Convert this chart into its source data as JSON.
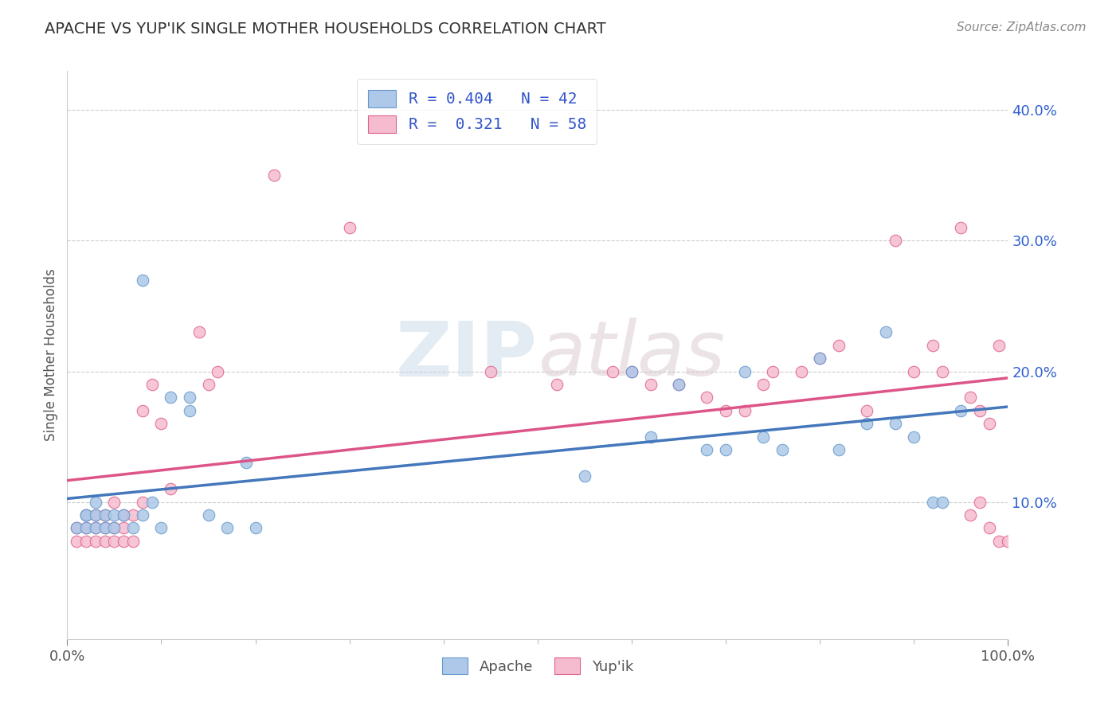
{
  "title": "APACHE VS YUP'IK SINGLE MOTHER HOUSEHOLDS CORRELATION CHART",
  "source": "Source: ZipAtlas.com",
  "ylabel": "Single Mother Households",
  "xlim": [
    0.0,
    1.0
  ],
  "ylim": [
    -0.005,
    0.43
  ],
  "yticks": [
    0.1,
    0.2,
    0.3,
    0.4
  ],
  "ytick_labels": [
    "10.0%",
    "20.0%",
    "30.0%",
    "40.0%"
  ],
  "xticks": [
    0.0,
    1.0
  ],
  "xtick_labels": [
    "0.0%",
    "100.0%"
  ],
  "R_apache": 0.404,
  "N_apache": 42,
  "R_yupik": 0.321,
  "N_yupik": 58,
  "apache_color": "#adc8e8",
  "yupik_color": "#f5bcd0",
  "apache_edge_color": "#6699cc",
  "yupik_edge_color": "#e0608a",
  "apache_line_color": "#4477bb",
  "yupik_line_color": "#dd5588",
  "legend_r_color": "#3355cc",
  "background_color": "#ffffff",
  "watermark_top": "ZIP",
  "watermark_bottom": "atlas",
  "apache_x": [
    0.01,
    0.02,
    0.02,
    0.02,
    0.03,
    0.03,
    0.03,
    0.04,
    0.04,
    0.05,
    0.05,
    0.06,
    0.07,
    0.08,
    0.08,
    0.09,
    0.1,
    0.11,
    0.13,
    0.13,
    0.15,
    0.17,
    0.19,
    0.2,
    0.55,
    0.6,
    0.62,
    0.65,
    0.68,
    0.7,
    0.72,
    0.74,
    0.76,
    0.8,
    0.82,
    0.85,
    0.87,
    0.88,
    0.9,
    0.92,
    0.93,
    0.95
  ],
  "apache_y": [
    0.08,
    0.09,
    0.08,
    0.09,
    0.08,
    0.09,
    0.1,
    0.08,
    0.09,
    0.08,
    0.09,
    0.09,
    0.08,
    0.09,
    0.27,
    0.1,
    0.08,
    0.18,
    0.18,
    0.17,
    0.09,
    0.08,
    0.13,
    0.08,
    0.12,
    0.2,
    0.15,
    0.19,
    0.14,
    0.14,
    0.2,
    0.15,
    0.14,
    0.21,
    0.14,
    0.16,
    0.23,
    0.16,
    0.15,
    0.1,
    0.1,
    0.17
  ],
  "yupik_x": [
    0.01,
    0.01,
    0.02,
    0.02,
    0.02,
    0.03,
    0.03,
    0.03,
    0.04,
    0.04,
    0.04,
    0.05,
    0.05,
    0.05,
    0.06,
    0.06,
    0.06,
    0.07,
    0.07,
    0.08,
    0.08,
    0.09,
    0.1,
    0.11,
    0.14,
    0.15,
    0.16,
    0.22,
    0.3,
    0.45,
    0.52,
    0.58,
    0.6,
    0.62,
    0.65,
    0.68,
    0.7,
    0.72,
    0.74,
    0.75,
    0.78,
    0.8,
    0.82,
    0.85,
    0.88,
    0.9,
    0.92,
    0.93,
    0.95,
    0.96,
    0.96,
    0.97,
    0.97,
    0.98,
    0.98,
    0.99,
    0.99,
    1.0
  ],
  "yupik_y": [
    0.07,
    0.08,
    0.07,
    0.08,
    0.09,
    0.07,
    0.08,
    0.09,
    0.07,
    0.08,
    0.09,
    0.07,
    0.08,
    0.1,
    0.07,
    0.08,
    0.09,
    0.07,
    0.09,
    0.1,
    0.17,
    0.19,
    0.16,
    0.11,
    0.23,
    0.19,
    0.2,
    0.35,
    0.31,
    0.2,
    0.19,
    0.2,
    0.2,
    0.19,
    0.19,
    0.18,
    0.17,
    0.17,
    0.19,
    0.2,
    0.2,
    0.21,
    0.22,
    0.17,
    0.3,
    0.2,
    0.22,
    0.2,
    0.31,
    0.09,
    0.18,
    0.1,
    0.17,
    0.08,
    0.16,
    0.22,
    0.07,
    0.07
  ]
}
